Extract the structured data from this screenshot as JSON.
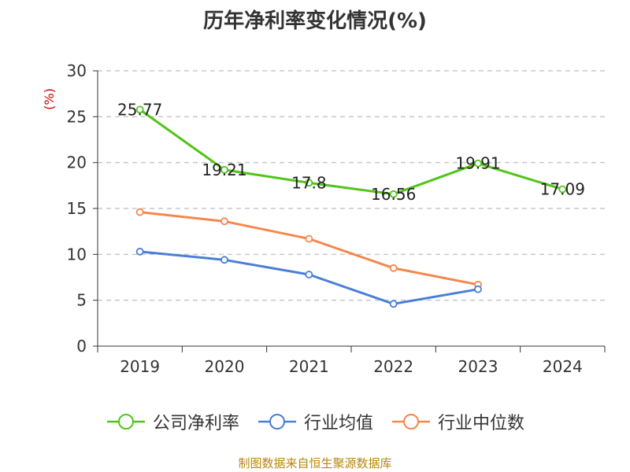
{
  "title": "历年净利率变化情况(%)",
  "source": "制图数据来自恒生聚源数据库",
  "chart_data": {
    "type": "line",
    "title": "历年净利率变化情况(%)",
    "ylabel": "(%)",
    "ylabel_color": "#cc0000",
    "xlabel": "",
    "categories": [
      "2019",
      "2020",
      "2021",
      "2022",
      "2023",
      "2024"
    ],
    "ylim": [
      0,
      30
    ],
    "yticks": [
      0,
      5,
      10,
      15,
      20,
      25,
      30
    ],
    "grid": "horizontal dashed",
    "legend_position": "bottom",
    "series": [
      {
        "name": "公司净利率",
        "color": "#52c41a",
        "values": [
          25.77,
          19.21,
          17.8,
          16.56,
          19.91,
          17.09
        ],
        "labels": [
          "25.77",
          "19.21",
          "17.8",
          "16.56",
          "19.91",
          "17.09"
        ]
      },
      {
        "name": "行业均值",
        "color": "#4a7fd6",
        "values": [
          10.3,
          9.4,
          7.8,
          4.6,
          6.2,
          null
        ],
        "labels": []
      },
      {
        "name": "行业中位数",
        "color": "#f5874d",
        "values": [
          14.6,
          13.6,
          11.7,
          8.5,
          6.7,
          null
        ],
        "labels": []
      }
    ]
  }
}
